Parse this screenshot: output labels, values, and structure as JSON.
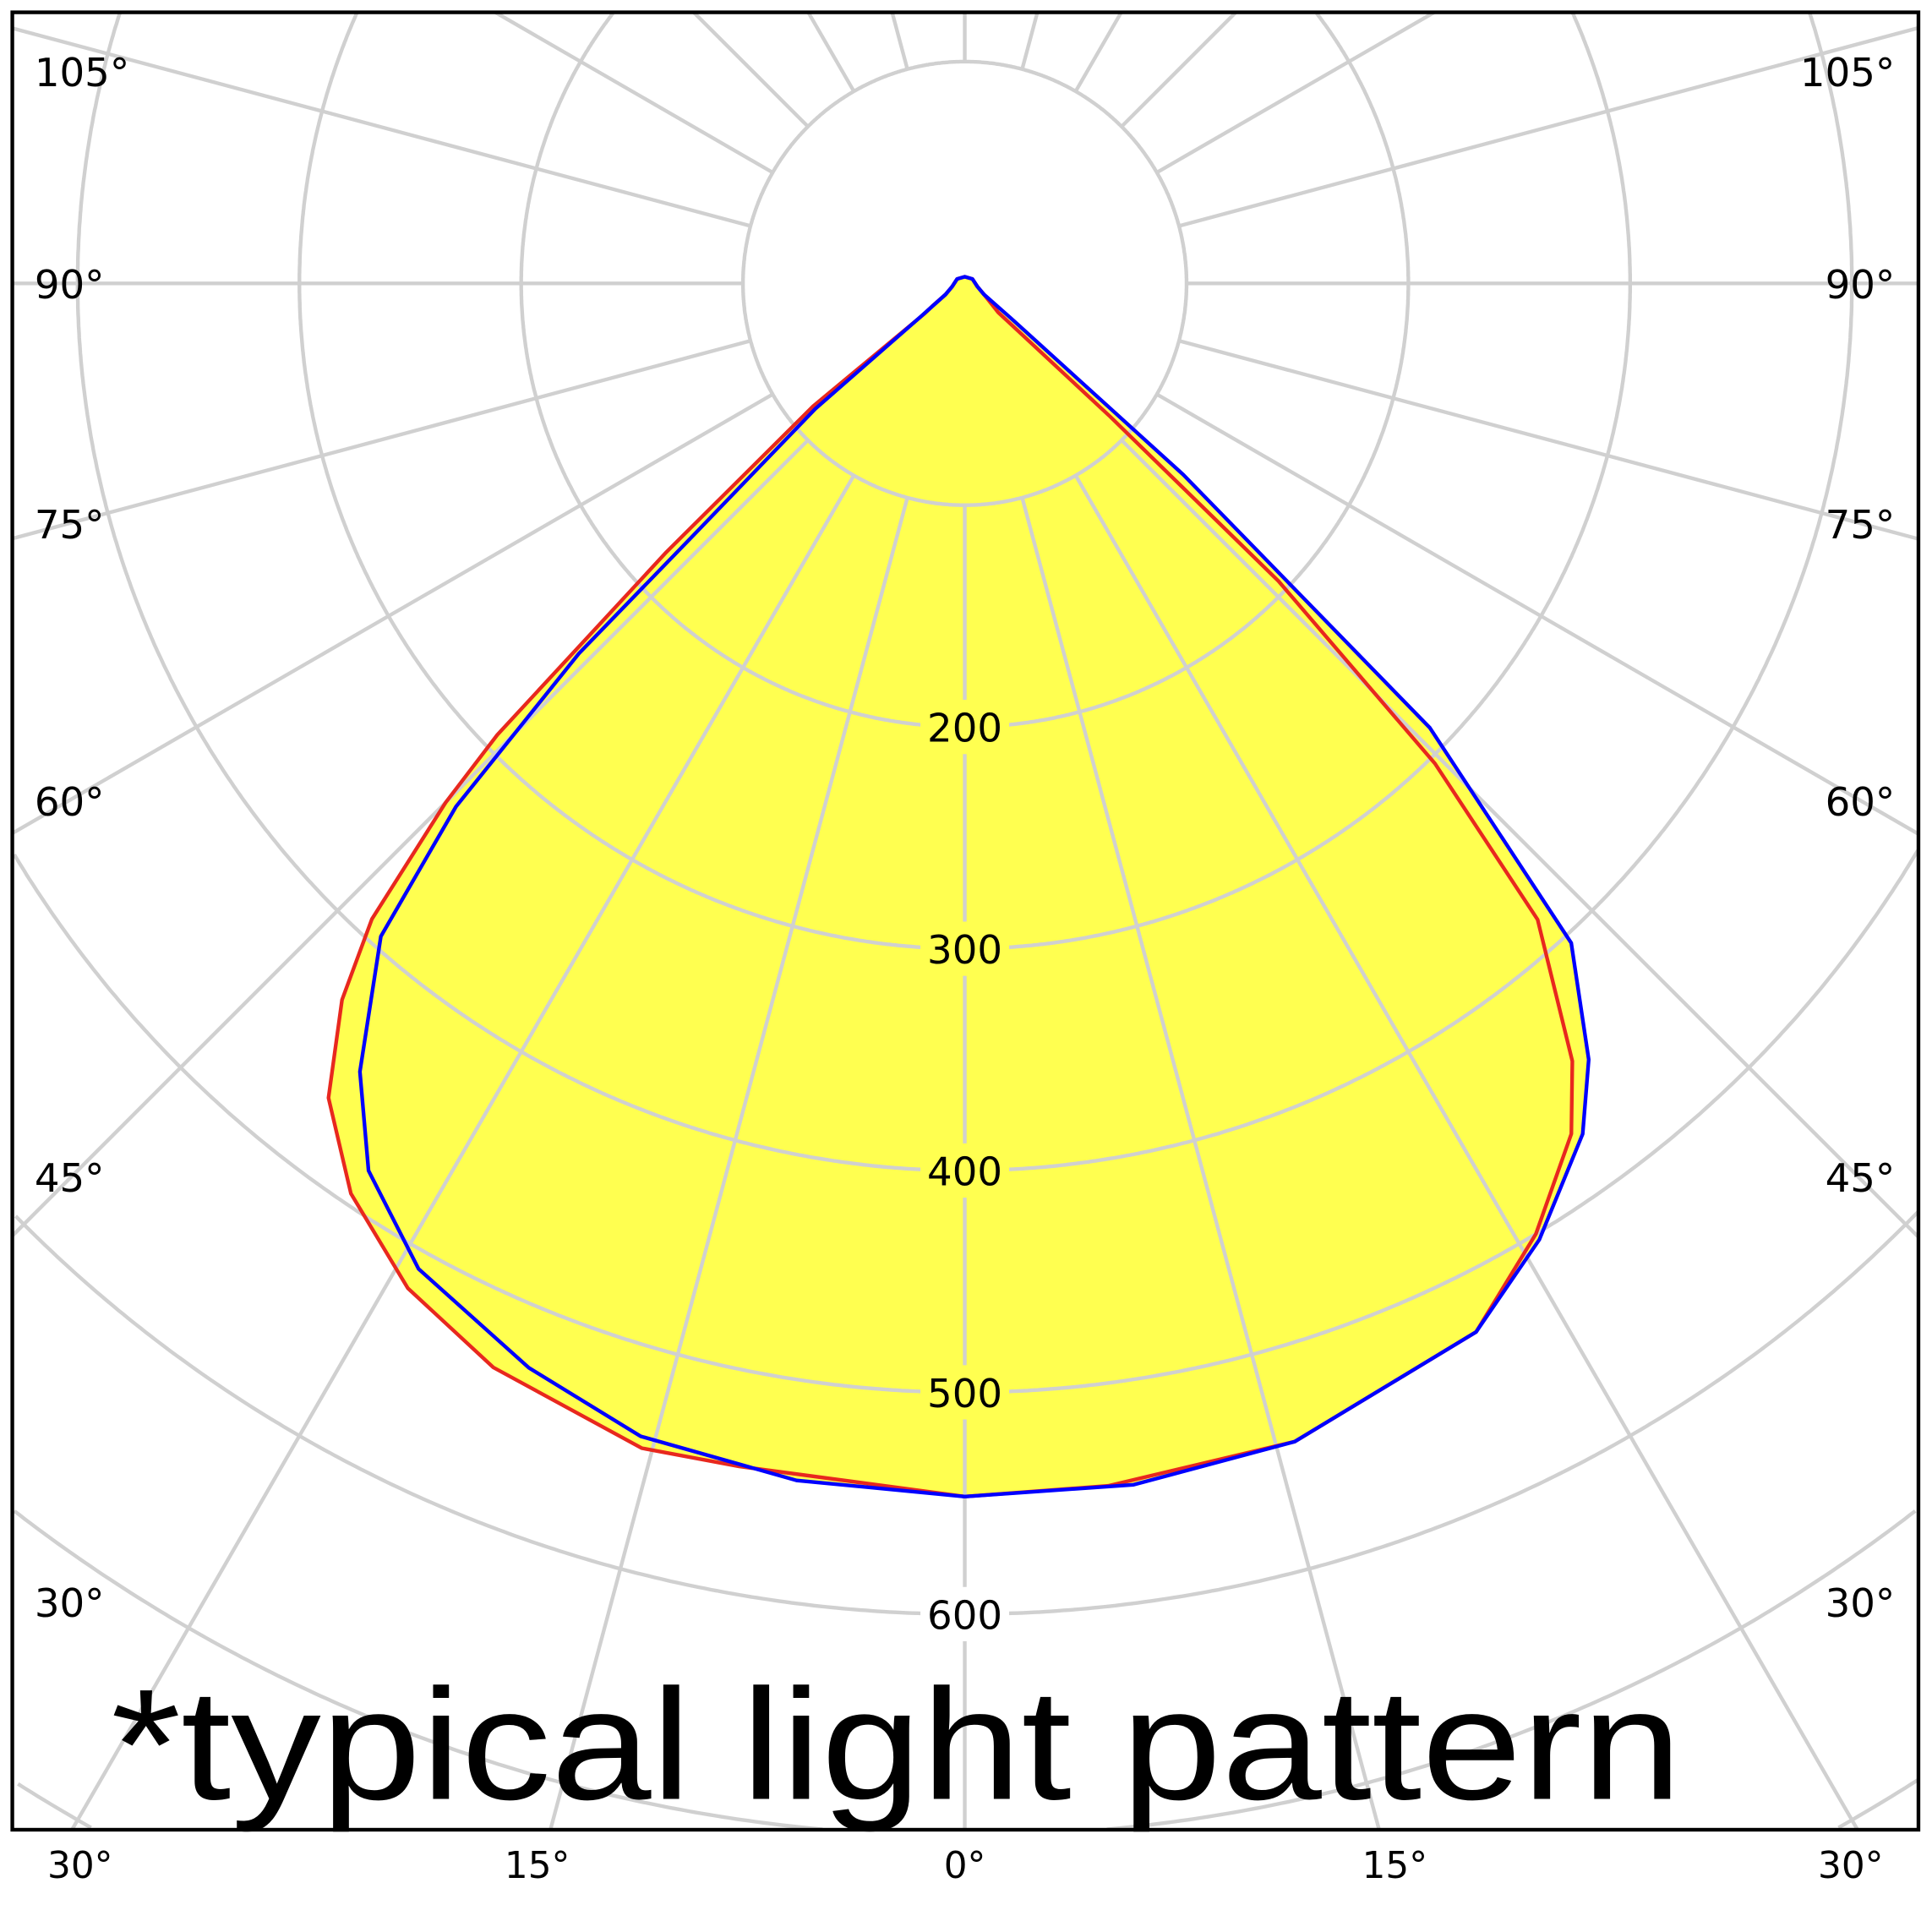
{
  "chart_data": {
    "type": "polar",
    "title": "*typical light pattern",
    "angle_unit": "degrees",
    "angle_zero": "down",
    "radial_ticks": [
      200,
      300,
      400,
      500,
      600
    ],
    "radial_tick_labels": [
      "200",
      "300",
      "400",
      "500",
      "600"
    ],
    "radial_gridlines": [
      100,
      200,
      300,
      400,
      500,
      600,
      700,
      800,
      900
    ],
    "angle_gridline_step": 15,
    "angle_labels_left": [
      "105°",
      "90°",
      "75°",
      "60°",
      "45°",
      "30°"
    ],
    "angle_labels_bottom": [
      "30°",
      "15°",
      "0°",
      "15°",
      "30°"
    ],
    "angle_labels_right": [
      "105°",
      "90°",
      "75°",
      "60°",
      "45°",
      "30°"
    ],
    "grid": true,
    "colors": {
      "fill": "#ffff50",
      "grid": "#d0d0d0",
      "series_1": "#e8281e",
      "series_2": "#0000ff",
      "frame": "#000000"
    },
    "series": [
      {
        "color": "#e8281e",
        "points": [
          [
            -180,
            3
          ],
          [
            -120,
            4
          ],
          [
            -75,
            6
          ],
          [
            -60,
            10
          ],
          [
            -55,
            18
          ],
          [
            -53,
            23
          ],
          [
            -51,
            88
          ],
          [
            -48,
            181
          ],
          [
            -46,
            293
          ],
          [
            -45,
            331
          ],
          [
            -43,
            392
          ],
          [
            -41,
            428
          ],
          [
            -38,
            466
          ],
          [
            -34,
            495
          ],
          [
            -29,
            518
          ],
          [
            -23.5,
            533
          ],
          [
            -15.5,
            545
          ],
          [
            -10.8,
            543
          ],
          [
            0,
            547
          ],
          [
            6.8,
            546
          ],
          [
            15.9,
            543
          ],
          [
            26,
            526
          ],
          [
            31,
            500
          ],
          [
            35.5,
            471
          ],
          [
            38,
            445
          ],
          [
            42,
            386
          ],
          [
            44.4,
            303
          ],
          [
            46.5,
            195
          ],
          [
            47.5,
            89
          ],
          [
            49,
            20
          ],
          [
            60,
            10
          ],
          [
            75,
            6
          ],
          [
            120,
            4
          ],
          [
            180,
            3
          ]
        ]
      },
      {
        "color": "#0000ff",
        "points": [
          [
            -180,
            3
          ],
          [
            -120,
            4
          ],
          [
            -75,
            6
          ],
          [
            -60,
            10
          ],
          [
            -53,
            25
          ],
          [
            -50,
            88
          ],
          [
            -47.1,
            169
          ],
          [
            -46.2,
            241
          ],
          [
            -44.2,
            329
          ],
          [
            -41.8,
            395
          ],
          [
            -37.5,
            448
          ],
          [
            -33.9,
            482
          ],
          [
            -29,
            508
          ],
          [
            -21.9,
            527
          ],
          [
            -15.7,
            540
          ],
          [
            -8,
            545
          ],
          [
            0,
            547
          ],
          [
            8,
            547
          ],
          [
            15.9,
            543
          ],
          [
            26,
            526
          ],
          [
            31,
            503
          ],
          [
            36,
            474
          ],
          [
            38.8,
            449
          ],
          [
            42.6,
            404
          ],
          [
            46.3,
            290
          ],
          [
            48.8,
            131
          ],
          [
            53,
            26
          ],
          [
            60,
            10
          ],
          [
            75,
            6
          ],
          [
            120,
            4
          ],
          [
            180,
            3
          ]
        ]
      }
    ]
  }
}
